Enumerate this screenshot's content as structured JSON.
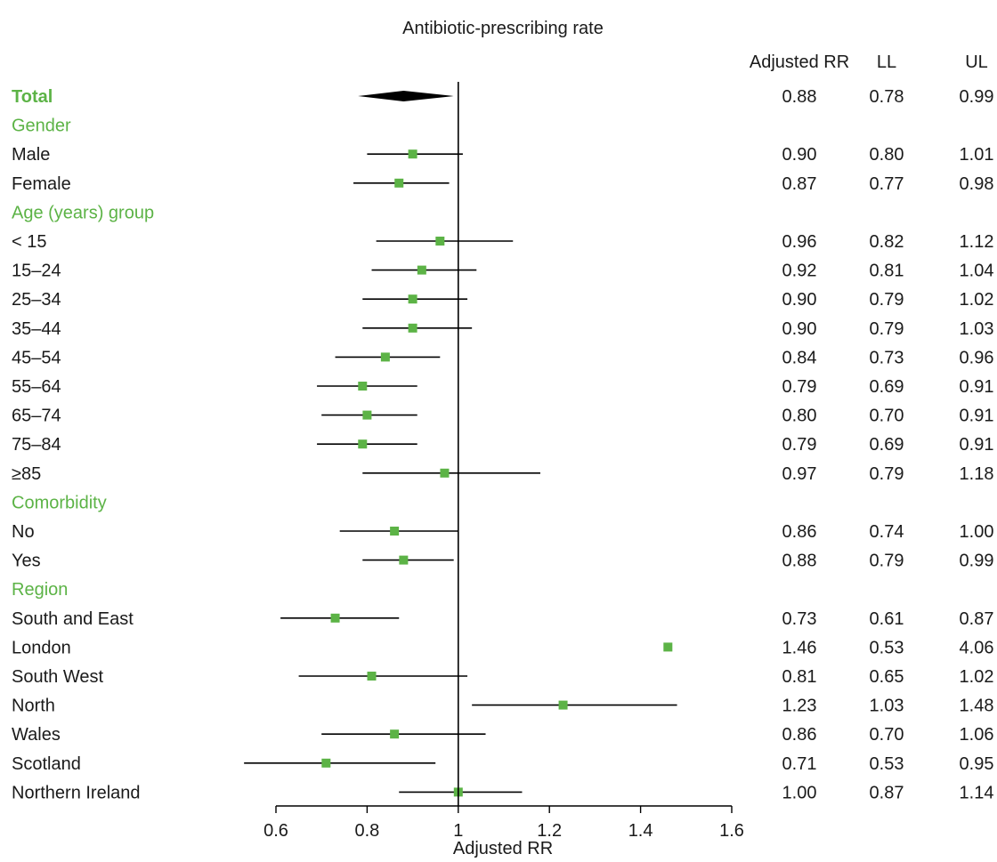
{
  "chart_data": {
    "type": "forest",
    "title": "Antibiotic-prescribing rate",
    "xlabel": "Adjusted RR",
    "xlim": [
      0.6,
      1.6
    ],
    "xticks": [
      "0.6",
      "0.8",
      "1",
      "1.2",
      "1.4",
      "1.6"
    ],
    "reference_line": 1.0,
    "columns": [
      "Adjusted RR",
      "LL",
      "UL"
    ],
    "colors": {
      "marker": "#5cb346",
      "heading": "#5cb346",
      "text": "#1a1a1a",
      "line": "#000000"
    },
    "rows": [
      {
        "label": "Total",
        "kind": "total",
        "rr": 0.88,
        "ll": 0.78,
        "ul": 0.99,
        "rr_text": "0.88",
        "ll_text": "0.78",
        "ul_text": "0.99"
      },
      {
        "label": "Gender",
        "kind": "heading"
      },
      {
        "label": "Male",
        "kind": "item",
        "rr": 0.9,
        "ll": 0.8,
        "ul": 1.01,
        "rr_text": "0.90",
        "ll_text": "0.80",
        "ul_text": "1.01"
      },
      {
        "label": "Female",
        "kind": "item",
        "rr": 0.87,
        "ll": 0.77,
        "ul": 0.98,
        "rr_text": "0.87",
        "ll_text": "0.77",
        "ul_text": "0.98"
      },
      {
        "label": "Age (years) group",
        "kind": "heading"
      },
      {
        "label": "< 15",
        "kind": "item",
        "rr": 0.96,
        "ll": 0.82,
        "ul": 1.12,
        "rr_text": "0.96",
        "ll_text": "0.82",
        "ul_text": "1.12"
      },
      {
        "label": "15–24",
        "kind": "item",
        "rr": 0.92,
        "ll": 0.81,
        "ul": 1.04,
        "rr_text": "0.92",
        "ll_text": "0.81",
        "ul_text": "1.04"
      },
      {
        "label": "25–34",
        "kind": "item",
        "rr": 0.9,
        "ll": 0.79,
        "ul": 1.02,
        "rr_text": "0.90",
        "ll_text": "0.79",
        "ul_text": "1.02"
      },
      {
        "label": "35–44",
        "kind": "item",
        "rr": 0.9,
        "ll": 0.79,
        "ul": 1.03,
        "rr_text": "0.90",
        "ll_text": "0.79",
        "ul_text": "1.03"
      },
      {
        "label": "45–54",
        "kind": "item",
        "rr": 0.84,
        "ll": 0.73,
        "ul": 0.96,
        "rr_text": "0.84",
        "ll_text": "0.73",
        "ul_text": "0.96"
      },
      {
        "label": "55–64",
        "kind": "item",
        "rr": 0.79,
        "ll": 0.69,
        "ul": 0.91,
        "rr_text": "0.79",
        "ll_text": "0.69",
        "ul_text": "0.91"
      },
      {
        "label": "65–74",
        "kind": "item",
        "rr": 0.8,
        "ll": 0.7,
        "ul": 0.91,
        "rr_text": "0.80",
        "ll_text": "0.70",
        "ul_text": "0.91"
      },
      {
        "label": "75–84",
        "kind": "item",
        "rr": 0.79,
        "ll": 0.69,
        "ul": 0.91,
        "rr_text": "0.79",
        "ll_text": "0.69",
        "ul_text": "0.91"
      },
      {
        "label": "≥85",
        "kind": "item",
        "rr": 0.97,
        "ll": 0.79,
        "ul": 1.18,
        "rr_text": "0.97",
        "ll_text": "0.79",
        "ul_text": "1.18"
      },
      {
        "label": "Comorbidity",
        "kind": "heading"
      },
      {
        "label": "No",
        "kind": "item",
        "rr": 0.86,
        "ll": 0.74,
        "ul": 1.0,
        "rr_text": "0.86",
        "ll_text": "0.74",
        "ul_text": "1.00"
      },
      {
        "label": "Yes",
        "kind": "item",
        "rr": 0.88,
        "ll": 0.79,
        "ul": 0.99,
        "rr_text": "0.88",
        "ll_text": "0.79",
        "ul_text": "0.99"
      },
      {
        "label": "Region",
        "kind": "heading"
      },
      {
        "label": "South and East",
        "kind": "item",
        "rr": 0.73,
        "ll": 0.61,
        "ul": 0.87,
        "rr_text": "0.73",
        "ll_text": "0.61",
        "ul_text": "0.87"
      },
      {
        "label": "London",
        "kind": "item",
        "rr": 1.46,
        "ll": 0.53,
        "ul": 4.06,
        "rr_text": "1.46",
        "ll_text": "0.53",
        "ul_text": "4.06",
        "ci_shown": false
      },
      {
        "label": "South West",
        "kind": "item",
        "rr": 0.81,
        "ll": 0.65,
        "ul": 1.02,
        "rr_text": "0.81",
        "ll_text": "0.65",
        "ul_text": "1.02"
      },
      {
        "label": "North",
        "kind": "item",
        "rr": 1.23,
        "ll": 1.03,
        "ul": 1.48,
        "rr_text": "1.23",
        "ll_text": "1.03",
        "ul_text": "1.48"
      },
      {
        "label": "Wales",
        "kind": "item",
        "rr": 0.86,
        "ll": 0.7,
        "ul": 1.06,
        "rr_text": "0.86",
        "ll_text": "0.70",
        "ul_text": "1.06"
      },
      {
        "label": "Scotland",
        "kind": "item",
        "rr": 0.71,
        "ll": 0.53,
        "ul": 0.95,
        "rr_text": "0.71",
        "ll_text": "0.53",
        "ul_text": "0.95"
      },
      {
        "label": "Northern Ireland",
        "kind": "item",
        "rr": 1.0,
        "ll": 0.87,
        "ul": 1.14,
        "rr_text": "1.00",
        "ll_text": "0.87",
        "ul_text": "1.14"
      }
    ]
  }
}
